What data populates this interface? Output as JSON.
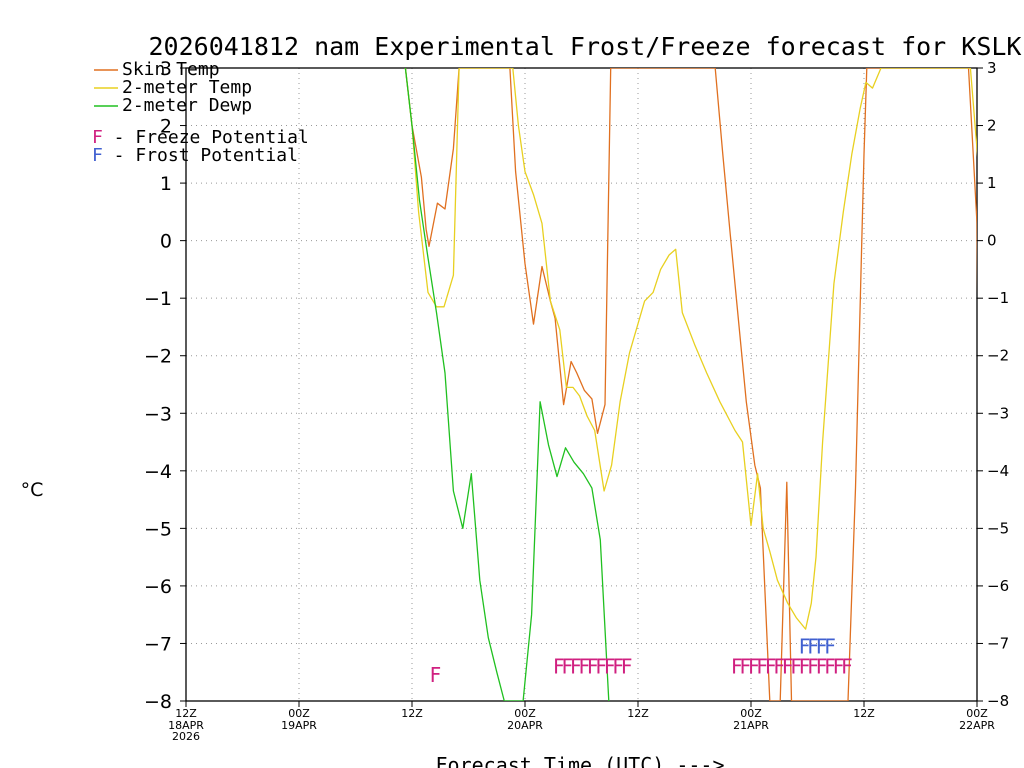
{
  "chart_data": {
    "type": "line",
    "title": "2026041812 nam Experimental Frost/Freeze forecast for KSLK",
    "ylabel": "°C",
    "xlabel": "Forecast Time (UTC) --->",
    "ylim": [
      -8,
      3
    ],
    "xlim_hours": [
      0,
      84
    ],
    "y_ticks": [
      3,
      2,
      1,
      0,
      -1,
      -2,
      -3,
      -4,
      -5,
      -6,
      -7,
      -8
    ],
    "y_tick_labels": [
      "3",
      "2",
      "1",
      "0",
      "−1",
      "−2",
      "−3",
      "−4",
      "−5",
      "−6",
      "−7",
      "−8"
    ],
    "x_ticks": [
      {
        "hour": 0,
        "label": "12Z",
        "sub": [
          "18APR",
          "2026"
        ]
      },
      {
        "hour": 12,
        "label": "00Z",
        "sub": [
          "19APR"
        ]
      },
      {
        "hour": 24,
        "label": "12Z",
        "sub": []
      },
      {
        "hour": 36,
        "label": "00Z",
        "sub": [
          "20APR"
        ]
      },
      {
        "hour": 48,
        "label": "12Z",
        "sub": []
      },
      {
        "hour": 60,
        "label": "00Z",
        "sub": [
          "21APR"
        ]
      },
      {
        "hour": 72,
        "label": "12Z",
        "sub": []
      },
      {
        "hour": 84,
        "label": "00Z",
        "sub": [
          "22APR"
        ]
      }
    ],
    "grid": true,
    "legend": [
      {
        "name": "Skin Temp",
        "color": "#e07020"
      },
      {
        "name": "2-meter Temp",
        "color": "#e8d020"
      },
      {
        "name": "2-meter Dewp",
        "color": "#20c020"
      }
    ],
    "legend_notes": [
      {
        "letter": "F",
        "text": " - Freeze Potential",
        "color": "#d02080"
      },
      {
        "letter": "F",
        "text": " - Frost Potential",
        "color": "#4060d0"
      }
    ],
    "series": [
      {
        "name": "Skin Temp",
        "color": "#e07020",
        "points": [
          [
            23.3,
            3.0
          ],
          [
            24,
            2.0
          ],
          [
            25,
            1.1
          ],
          [
            25.5,
            0.2
          ],
          [
            25.8,
            -0.1
          ],
          [
            26.7,
            0.65
          ],
          [
            27.5,
            0.55
          ],
          [
            28.4,
            1.6
          ],
          [
            29,
            3.0
          ],
          [
            34.4,
            3.0
          ],
          [
            35,
            1.2
          ],
          [
            36,
            -0.4
          ],
          [
            36.9,
            -1.45
          ],
          [
            37.8,
            -0.45
          ],
          [
            38.7,
            -1.05
          ],
          [
            39.2,
            -1.35
          ],
          [
            40.1,
            -2.85
          ],
          [
            40.9,
            -2.1
          ],
          [
            41.5,
            -2.3
          ],
          [
            42.3,
            -2.6
          ],
          [
            43.1,
            -2.75
          ],
          [
            43.7,
            -3.35
          ],
          [
            44.5,
            -2.85
          ],
          [
            45.1,
            3.0
          ],
          [
            56.2,
            3.0
          ],
          [
            57,
            1.5
          ],
          [
            57.8,
            0.1
          ],
          [
            58.5,
            -1.1
          ],
          [
            59.5,
            -2.8
          ],
          [
            60.4,
            -3.9
          ],
          [
            61,
            -4.3
          ],
          [
            62,
            -8.0
          ],
          [
            63.1,
            -8.0
          ],
          [
            63.8,
            -4.2
          ],
          [
            64.3,
            -8.0
          ],
          [
            70.3,
            -8.0
          ],
          [
            71.1,
            -4.3
          ],
          [
            72,
            1.5
          ],
          [
            72.3,
            3.0
          ],
          [
            83.1,
            3.0
          ],
          [
            84,
            0.3
          ],
          [
            84.1,
            -1.4
          ]
        ]
      },
      {
        "name": "2-meter Temp",
        "color": "#e8d020",
        "points": [
          [
            23.3,
            3.0
          ],
          [
            24,
            2.0
          ],
          [
            24.7,
            0.5
          ],
          [
            25.7,
            -0.9
          ],
          [
            26.6,
            -1.15
          ],
          [
            27.4,
            -1.15
          ],
          [
            28.4,
            -0.6
          ],
          [
            29,
            3.0
          ],
          [
            34.7,
            3.0
          ],
          [
            35.3,
            2.0
          ],
          [
            36,
            1.2
          ],
          [
            36.9,
            0.8
          ],
          [
            37.8,
            0.3
          ],
          [
            38.7,
            -1.05
          ],
          [
            39.7,
            -1.55
          ],
          [
            40.4,
            -2.55
          ],
          [
            41.1,
            -2.55
          ],
          [
            41.8,
            -2.7
          ],
          [
            42.6,
            -3.05
          ],
          [
            43.4,
            -3.3
          ],
          [
            44.4,
            -4.35
          ],
          [
            45.2,
            -3.9
          ],
          [
            46.1,
            -2.8
          ],
          [
            47.1,
            -1.95
          ],
          [
            48.7,
            -1.05
          ],
          [
            49.6,
            -0.9
          ],
          [
            50.4,
            -0.5
          ],
          [
            51.3,
            -0.25
          ],
          [
            52,
            -0.15
          ],
          [
            52.7,
            -1.25
          ],
          [
            54,
            -1.8
          ],
          [
            55.3,
            -2.3
          ],
          [
            56.7,
            -2.8
          ],
          [
            58.3,
            -3.3
          ],
          [
            59.1,
            -3.5
          ],
          [
            60,
            -4.95
          ],
          [
            60.7,
            -4.05
          ],
          [
            61.3,
            -5.0
          ],
          [
            62,
            -5.4
          ],
          [
            62.8,
            -5.9
          ],
          [
            63.9,
            -6.3
          ],
          [
            64.8,
            -6.55
          ],
          [
            65.8,
            -6.75
          ],
          [
            66.4,
            -6.3
          ],
          [
            66.9,
            -5.5
          ],
          [
            67.6,
            -3.5
          ],
          [
            68.8,
            -0.75
          ],
          [
            69.8,
            0.5
          ],
          [
            70.7,
            1.5
          ],
          [
            71.6,
            2.3
          ],
          [
            72.2,
            2.75
          ],
          [
            72.9,
            2.65
          ],
          [
            73.8,
            3.0
          ],
          [
            83.3,
            3.0
          ],
          [
            84.1,
            1.4
          ]
        ]
      },
      {
        "name": "2-meter Dewp",
        "color": "#20c020",
        "points": [
          [
            23.3,
            3.0
          ],
          [
            24,
            2.0
          ],
          [
            24.8,
            0.7
          ],
          [
            25.7,
            -0.3
          ],
          [
            26.6,
            -1.25
          ],
          [
            27.5,
            -2.3
          ],
          [
            28.4,
            -4.35
          ],
          [
            29.4,
            -5.0
          ],
          [
            30.3,
            -4.05
          ],
          [
            31.2,
            -5.9
          ],
          [
            32.1,
            -6.9
          ],
          [
            33,
            -7.5
          ],
          [
            33.8,
            -8.0
          ],
          [
            35.8,
            -8.0
          ],
          [
            36.7,
            -6.5
          ],
          [
            37.6,
            -2.8
          ],
          [
            38.5,
            -3.55
          ],
          [
            39.4,
            -4.1
          ],
          [
            40.3,
            -3.6
          ],
          [
            41.2,
            -3.85
          ],
          [
            42.2,
            -4.05
          ],
          [
            43.1,
            -4.3
          ],
          [
            44,
            -5.2
          ],
          [
            44.9,
            -8.0
          ]
        ]
      }
    ],
    "freeze_potential": {
      "color": "#d02080",
      "markers": [
        [
          26.5,
          -7.55
        ],
        [
          39.6,
          -7.4
        ],
        [
          40.5,
          -7.4
        ],
        [
          41.4,
          -7.4
        ],
        [
          42.3,
          -7.4
        ],
        [
          43.2,
          -7.4
        ],
        [
          44.1,
          -7.4
        ],
        [
          45,
          -7.4
        ],
        [
          45.9,
          -7.4
        ],
        [
          46.8,
          -7.4
        ],
        [
          58.5,
          -7.4
        ],
        [
          59.4,
          -7.4
        ],
        [
          60.3,
          -7.4
        ],
        [
          61.2,
          -7.4
        ],
        [
          62.1,
          -7.4
        ],
        [
          63,
          -7.4
        ],
        [
          63.9,
          -7.4
        ],
        [
          64.8,
          -7.4
        ],
        [
          65.7,
          -7.4
        ],
        [
          66.6,
          -7.4
        ],
        [
          67.5,
          -7.4
        ],
        [
          68.4,
          -7.4
        ],
        [
          69.3,
          -7.4
        ],
        [
          70.2,
          -7.4
        ]
      ]
    },
    "frost_potential": {
      "color": "#4060d0",
      "markers": [
        [
          65.7,
          -7.05
        ],
        [
          66.6,
          -7.05
        ],
        [
          67.5,
          -7.05
        ],
        [
          68.4,
          -7.05
        ]
      ]
    }
  }
}
